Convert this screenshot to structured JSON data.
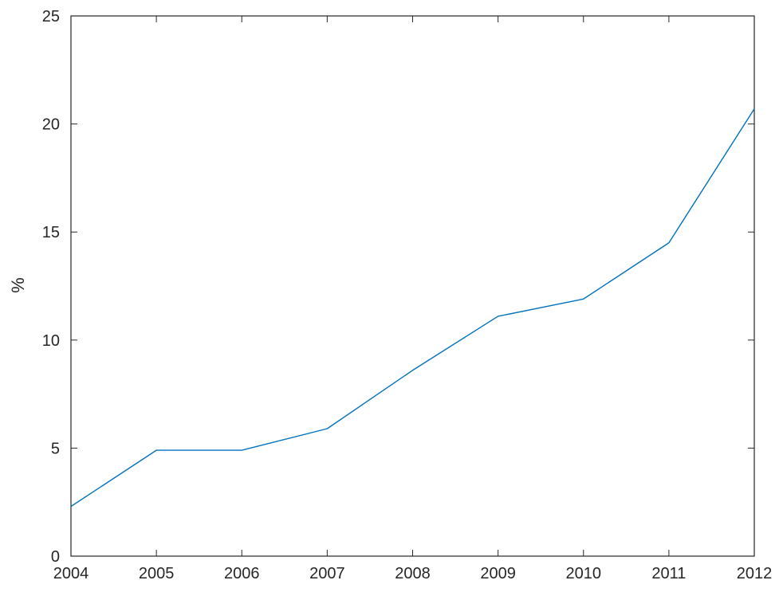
{
  "chart_data": {
    "type": "line",
    "title": "",
    "xlabel": "",
    "ylabel": "%",
    "xlim": [
      2004,
      2012
    ],
    "ylim": [
      0,
      25
    ],
    "x_ticks": [
      2004,
      2005,
      2006,
      2007,
      2008,
      2009,
      2010,
      2011,
      2012
    ],
    "y_ticks": [
      0,
      5,
      10,
      15,
      20,
      25
    ],
    "grid": false,
    "line_color": "#0072BD",
    "axis_color": "#262626",
    "series": [
      {
        "x": [
          2004,
          2005,
          2006,
          2007,
          2008,
          2009,
          2010,
          2011,
          2012
        ],
        "y": [
          2.3,
          4.9,
          4.9,
          5.9,
          8.6,
          11.1,
          11.9,
          14.5,
          20.7
        ]
      }
    ]
  }
}
